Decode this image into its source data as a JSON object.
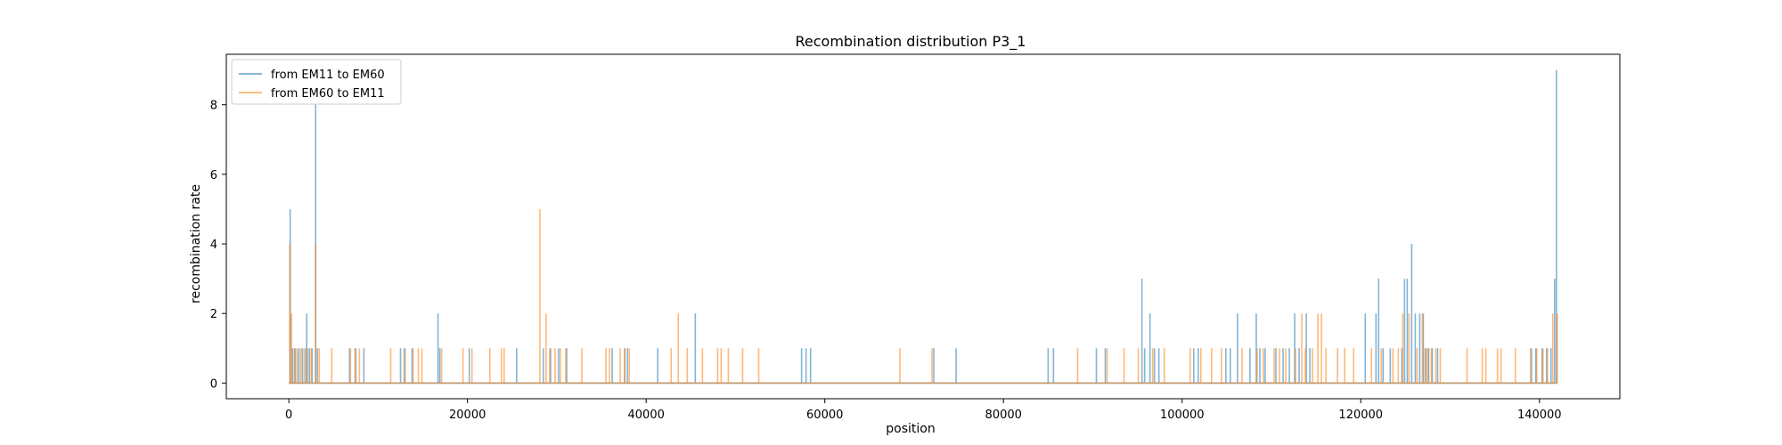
{
  "chart_data": {
    "type": "line",
    "title": "Recombination distribution P3_1",
    "xlabel": "position",
    "ylabel": "recombination rate",
    "xlim": [
      -7000,
      149000
    ],
    "ylim": [
      -0.45,
      9.45
    ],
    "xticks": [
      0,
      20000,
      40000,
      60000,
      80000,
      100000,
      120000,
      140000
    ],
    "yticks": [
      0,
      2,
      4,
      6,
      8
    ],
    "grid": false,
    "legend_position": "top-left",
    "series": [
      {
        "name": "from EM11 to EM60",
        "color": "#1f77b4",
        "spikes": [
          [
            150,
            5
          ],
          [
            400,
            1
          ],
          [
            700,
            1
          ],
          [
            1100,
            1
          ],
          [
            1500,
            1
          ],
          [
            1900,
            1
          ],
          [
            2000,
            2
          ],
          [
            2300,
            1
          ],
          [
            2600,
            1
          ],
          [
            3000,
            8
          ],
          [
            3200,
            1
          ],
          [
            6800,
            1
          ],
          [
            7500,
            1
          ],
          [
            8400,
            1
          ],
          [
            12500,
            1
          ],
          [
            13000,
            1
          ],
          [
            13800,
            1
          ],
          [
            16700,
            2
          ],
          [
            16900,
            1
          ],
          [
            20200,
            1
          ],
          [
            25500,
            1
          ],
          [
            28500,
            1
          ],
          [
            29300,
            1
          ],
          [
            30200,
            1
          ],
          [
            31100,
            1
          ],
          [
            36200,
            1
          ],
          [
            37600,
            1
          ],
          [
            37900,
            1
          ],
          [
            41300,
            1
          ],
          [
            45500,
            2
          ],
          [
            57400,
            1
          ],
          [
            57900,
            1
          ],
          [
            58400,
            1
          ],
          [
            72200,
            1
          ],
          [
            74700,
            1
          ],
          [
            85000,
            1
          ],
          [
            85600,
            1
          ],
          [
            90400,
            1
          ],
          [
            91400,
            1
          ],
          [
            95500,
            3
          ],
          [
            95800,
            1
          ],
          [
            96400,
            2
          ],
          [
            96900,
            1
          ],
          [
            97400,
            1
          ],
          [
            101300,
            1
          ],
          [
            101800,
            1
          ],
          [
            104900,
            1
          ],
          [
            105400,
            1
          ],
          [
            106200,
            2
          ],
          [
            107600,
            1
          ],
          [
            108300,
            2
          ],
          [
            108700,
            1
          ],
          [
            109300,
            1
          ],
          [
            110500,
            1
          ],
          [
            111300,
            1
          ],
          [
            112000,
            1
          ],
          [
            112600,
            2
          ],
          [
            113100,
            1
          ],
          [
            113900,
            2
          ],
          [
            114300,
            1
          ],
          [
            120500,
            2
          ],
          [
            121700,
            2
          ],
          [
            122000,
            3
          ],
          [
            122500,
            1
          ],
          [
            123300,
            1
          ],
          [
            124600,
            1
          ],
          [
            124900,
            3
          ],
          [
            125200,
            3
          ],
          [
            125700,
            4
          ],
          [
            126100,
            2
          ],
          [
            126600,
            2
          ],
          [
            127000,
            2
          ],
          [
            127300,
            1
          ],
          [
            127600,
            1
          ],
          [
            128000,
            1
          ],
          [
            128600,
            1
          ],
          [
            139100,
            1
          ],
          [
            139600,
            1
          ],
          [
            140300,
            1
          ],
          [
            140800,
            1
          ],
          [
            141300,
            1
          ],
          [
            141700,
            3
          ],
          [
            141900,
            9
          ]
        ]
      },
      {
        "name": "from EM60 to EM11",
        "color": "#ff7f0e",
        "spikes": [
          [
            100,
            4
          ],
          [
            300,
            2
          ],
          [
            600,
            1
          ],
          [
            900,
            1
          ],
          [
            1300,
            1
          ],
          [
            1700,
            1
          ],
          [
            2100,
            1
          ],
          [
            2500,
            1
          ],
          [
            3000,
            4
          ],
          [
            3400,
            1
          ],
          [
            4800,
            1
          ],
          [
            6900,
            1
          ],
          [
            7400,
            1
          ],
          [
            7900,
            1
          ],
          [
            11400,
            1
          ],
          [
            12900,
            1
          ],
          [
            13900,
            1
          ],
          [
            14500,
            1
          ],
          [
            14900,
            1
          ],
          [
            17100,
            1
          ],
          [
            19500,
            1
          ],
          [
            20500,
            1
          ],
          [
            22500,
            1
          ],
          [
            23800,
            1
          ],
          [
            24100,
            1
          ],
          [
            28100,
            5
          ],
          [
            28800,
            2
          ],
          [
            29200,
            1
          ],
          [
            29800,
            1
          ],
          [
            30400,
            1
          ],
          [
            31000,
            1
          ],
          [
            32800,
            1
          ],
          [
            35500,
            1
          ],
          [
            35900,
            1
          ],
          [
            37100,
            1
          ],
          [
            37600,
            1
          ],
          [
            38100,
            1
          ],
          [
            42800,
            1
          ],
          [
            43600,
            2
          ],
          [
            44600,
            1
          ],
          [
            46300,
            1
          ],
          [
            48000,
            1
          ],
          [
            48400,
            1
          ],
          [
            49200,
            1
          ],
          [
            50800,
            1
          ],
          [
            52600,
            1
          ],
          [
            68400,
            1
          ],
          [
            72000,
            1
          ],
          [
            88300,
            1
          ],
          [
            91600,
            1
          ],
          [
            93500,
            1
          ],
          [
            95100,
            1
          ],
          [
            96700,
            1
          ],
          [
            98000,
            1
          ],
          [
            100900,
            1
          ],
          [
            102100,
            1
          ],
          [
            103300,
            1
          ],
          [
            104400,
            1
          ],
          [
            106700,
            1
          ],
          [
            108400,
            1
          ],
          [
            109100,
            1
          ],
          [
            110300,
            1
          ],
          [
            110900,
            1
          ],
          [
            111600,
            1
          ],
          [
            112700,
            1
          ],
          [
            113400,
            2
          ],
          [
            113800,
            1
          ],
          [
            114600,
            1
          ],
          [
            115200,
            2
          ],
          [
            115600,
            2
          ],
          [
            116100,
            1
          ],
          [
            117400,
            1
          ],
          [
            118200,
            1
          ],
          [
            119200,
            1
          ],
          [
            121200,
            1
          ],
          [
            122300,
            1
          ],
          [
            123600,
            1
          ],
          [
            124200,
            1
          ],
          [
            124700,
            2
          ],
          [
            125400,
            2
          ],
          [
            126300,
            1
          ],
          [
            126900,
            2
          ],
          [
            127200,
            1
          ],
          [
            127500,
            1
          ],
          [
            127900,
            1
          ],
          [
            128400,
            1
          ],
          [
            128900,
            1
          ],
          [
            131900,
            1
          ],
          [
            133600,
            1
          ],
          [
            134000,
            1
          ],
          [
            135300,
            1
          ],
          [
            135700,
            1
          ],
          [
            137300,
            1
          ],
          [
            139000,
            1
          ],
          [
            139700,
            1
          ],
          [
            140400,
            1
          ],
          [
            140900,
            1
          ],
          [
            141500,
            2
          ],
          [
            142000,
            2
          ]
        ]
      }
    ]
  }
}
